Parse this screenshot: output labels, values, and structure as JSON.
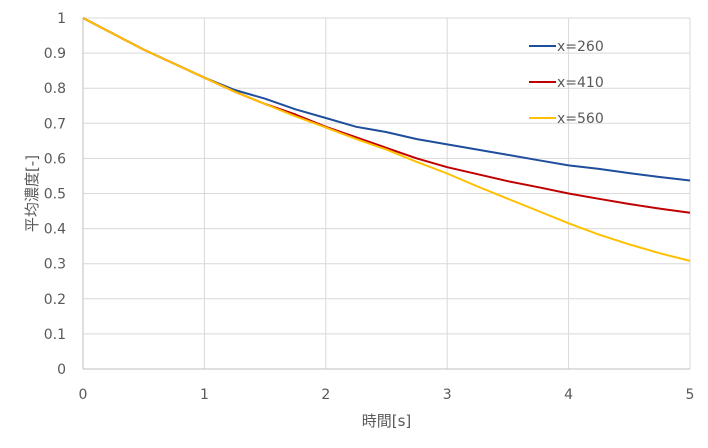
{
  "chart_data": {
    "type": "line",
    "xlabel": "時間[s]",
    "ylabel": "平均濃度[-]",
    "xlim": [
      0,
      5
    ],
    "ylim": [
      0,
      1
    ],
    "x_ticks": [
      "0",
      "1",
      "2",
      "3",
      "4",
      "5"
    ],
    "y_ticks": [
      "0",
      "0.1",
      "0.2",
      "0.3",
      "0.4",
      "0.5",
      "0.6",
      "0.7",
      "0.8",
      "0.9",
      "1"
    ],
    "grid": true,
    "legend_position": "top-right",
    "x": [
      0,
      0.25,
      0.5,
      0.75,
      1,
      1.25,
      1.5,
      1.75,
      2,
      2.25,
      2.5,
      2.75,
      3,
      3.25,
      3.5,
      3.75,
      4,
      4.25,
      4.5,
      4.75,
      5
    ],
    "series": [
      {
        "name": "x=260",
        "color": "#1f4e9c",
        "values": [
          1.0,
          0.955,
          0.91,
          0.87,
          0.83,
          0.795,
          0.77,
          0.74,
          0.715,
          0.69,
          0.675,
          0.655,
          0.64,
          0.625,
          0.61,
          0.595,
          0.58,
          0.57,
          0.558,
          0.547,
          0.537
        ]
      },
      {
        "name": "x=410",
        "color": "#c00000",
        "values": [
          1.0,
          0.955,
          0.91,
          0.87,
          0.83,
          0.79,
          0.755,
          0.725,
          0.69,
          0.66,
          0.63,
          0.6,
          0.575,
          0.555,
          0.535,
          0.518,
          0.5,
          0.485,
          0.47,
          0.457,
          0.445
        ]
      },
      {
        "name": "x=560",
        "color": "#ffc000",
        "values": [
          1.0,
          0.955,
          0.91,
          0.87,
          0.83,
          0.79,
          0.755,
          0.72,
          0.688,
          0.655,
          0.625,
          0.59,
          0.557,
          0.52,
          0.485,
          0.45,
          0.415,
          0.383,
          0.355,
          0.33,
          0.308
        ]
      }
    ]
  }
}
